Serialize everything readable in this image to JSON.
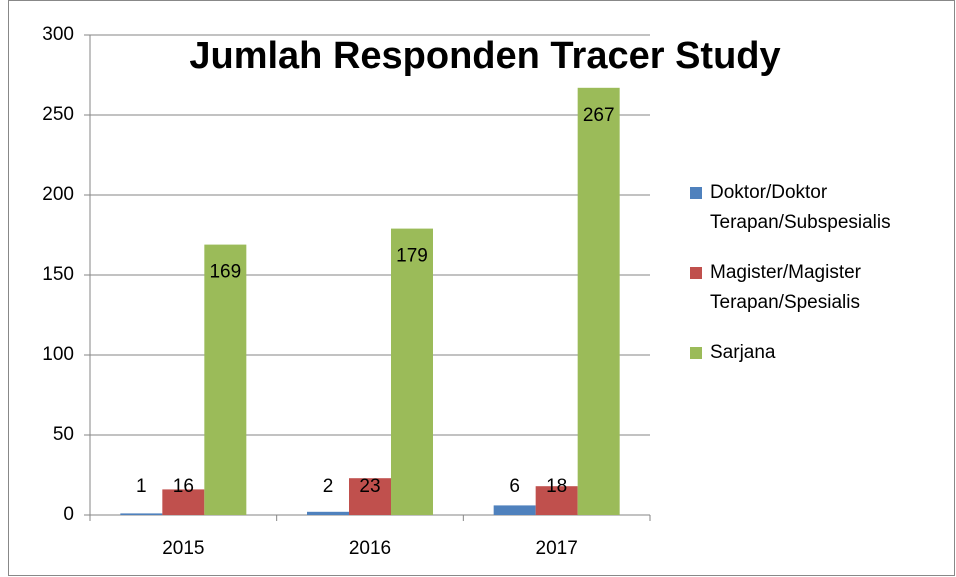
{
  "chart_data": {
    "type": "bar",
    "title": "Jumlah Responden Tracer Study",
    "categories": [
      "2015",
      "2016",
      "2017"
    ],
    "series": [
      {
        "name": "Doktor/Doktor Terapan/Subspesialis",
        "color": "#4f81bd",
        "values": [
          1,
          2,
          6
        ]
      },
      {
        "name": "Magister/Magister Terapan/Spesialis",
        "color": "#c0504d",
        "values": [
          16,
          23,
          18
        ]
      },
      {
        "name": "Sarjana",
        "color": "#9bbb59",
        "values": [
          169,
          179,
          267
        ]
      }
    ],
    "ylim": [
      0,
      300
    ],
    "yticks": [
      0,
      50,
      100,
      150,
      200,
      250,
      300
    ],
    "grid": true,
    "legend": "right"
  }
}
